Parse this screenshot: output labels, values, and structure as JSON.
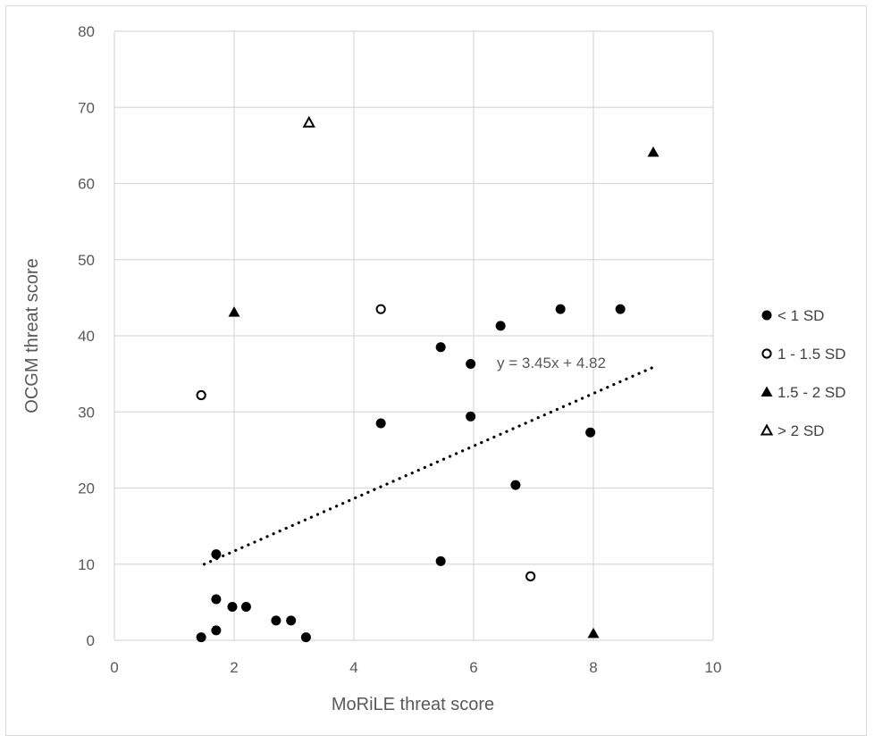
{
  "chart_data": {
    "type": "scatter",
    "title": "",
    "xlabel": "MoRiLE threat score",
    "ylabel": "OCGM threat score",
    "xlim": [
      0,
      10
    ],
    "ylim": [
      0,
      80
    ],
    "xticks": [
      0,
      2,
      4,
      6,
      8,
      10
    ],
    "yticks": [
      0,
      10,
      20,
      30,
      40,
      50,
      60,
      70,
      80
    ],
    "grid": true,
    "legend_position": "right",
    "series": [
      {
        "name": "< 1 SD",
        "marker": "filled-circle",
        "color": "#000000",
        "points": [
          [
            1.45,
            0.4
          ],
          [
            1.7,
            1.3
          ],
          [
            1.7,
            5.4
          ],
          [
            1.7,
            11.3
          ],
          [
            1.97,
            4.4
          ],
          [
            2.2,
            4.4
          ],
          [
            2.7,
            2.6
          ],
          [
            2.95,
            2.6
          ],
          [
            3.2,
            0.4
          ],
          [
            4.45,
            28.5
          ],
          [
            5.45,
            38.5
          ],
          [
            5.45,
            10.4
          ],
          [
            5.95,
            36.3
          ],
          [
            5.95,
            29.4
          ],
          [
            6.45,
            41.3
          ],
          [
            6.7,
            20.4
          ],
          [
            7.45,
            43.5
          ],
          [
            7.95,
            27.3
          ],
          [
            8.45,
            43.5
          ]
        ]
      },
      {
        "name": "1 - 1.5 SD",
        "marker": "open-circle",
        "color": "#000000",
        "points": [
          [
            1.45,
            32.2
          ],
          [
            4.45,
            43.5
          ],
          [
            6.95,
            8.4
          ]
        ]
      },
      {
        "name": "1.5 - 2 SD",
        "marker": "filled-triangle",
        "color": "#000000",
        "points": [
          [
            2.0,
            43.1
          ],
          [
            8.0,
            0.9
          ],
          [
            9.0,
            64.1
          ]
        ]
      },
      {
        "name": "> 2 SD",
        "marker": "open-triangle",
        "color": "#000000",
        "points": [
          [
            3.25,
            68.0
          ]
        ]
      }
    ],
    "trendline": {
      "type": "linear",
      "slope": 3.45,
      "intercept": 4.82,
      "x_range": [
        1.5,
        9.0
      ],
      "style": "dotted",
      "label": "y = 3.45x + 4.82"
    }
  }
}
